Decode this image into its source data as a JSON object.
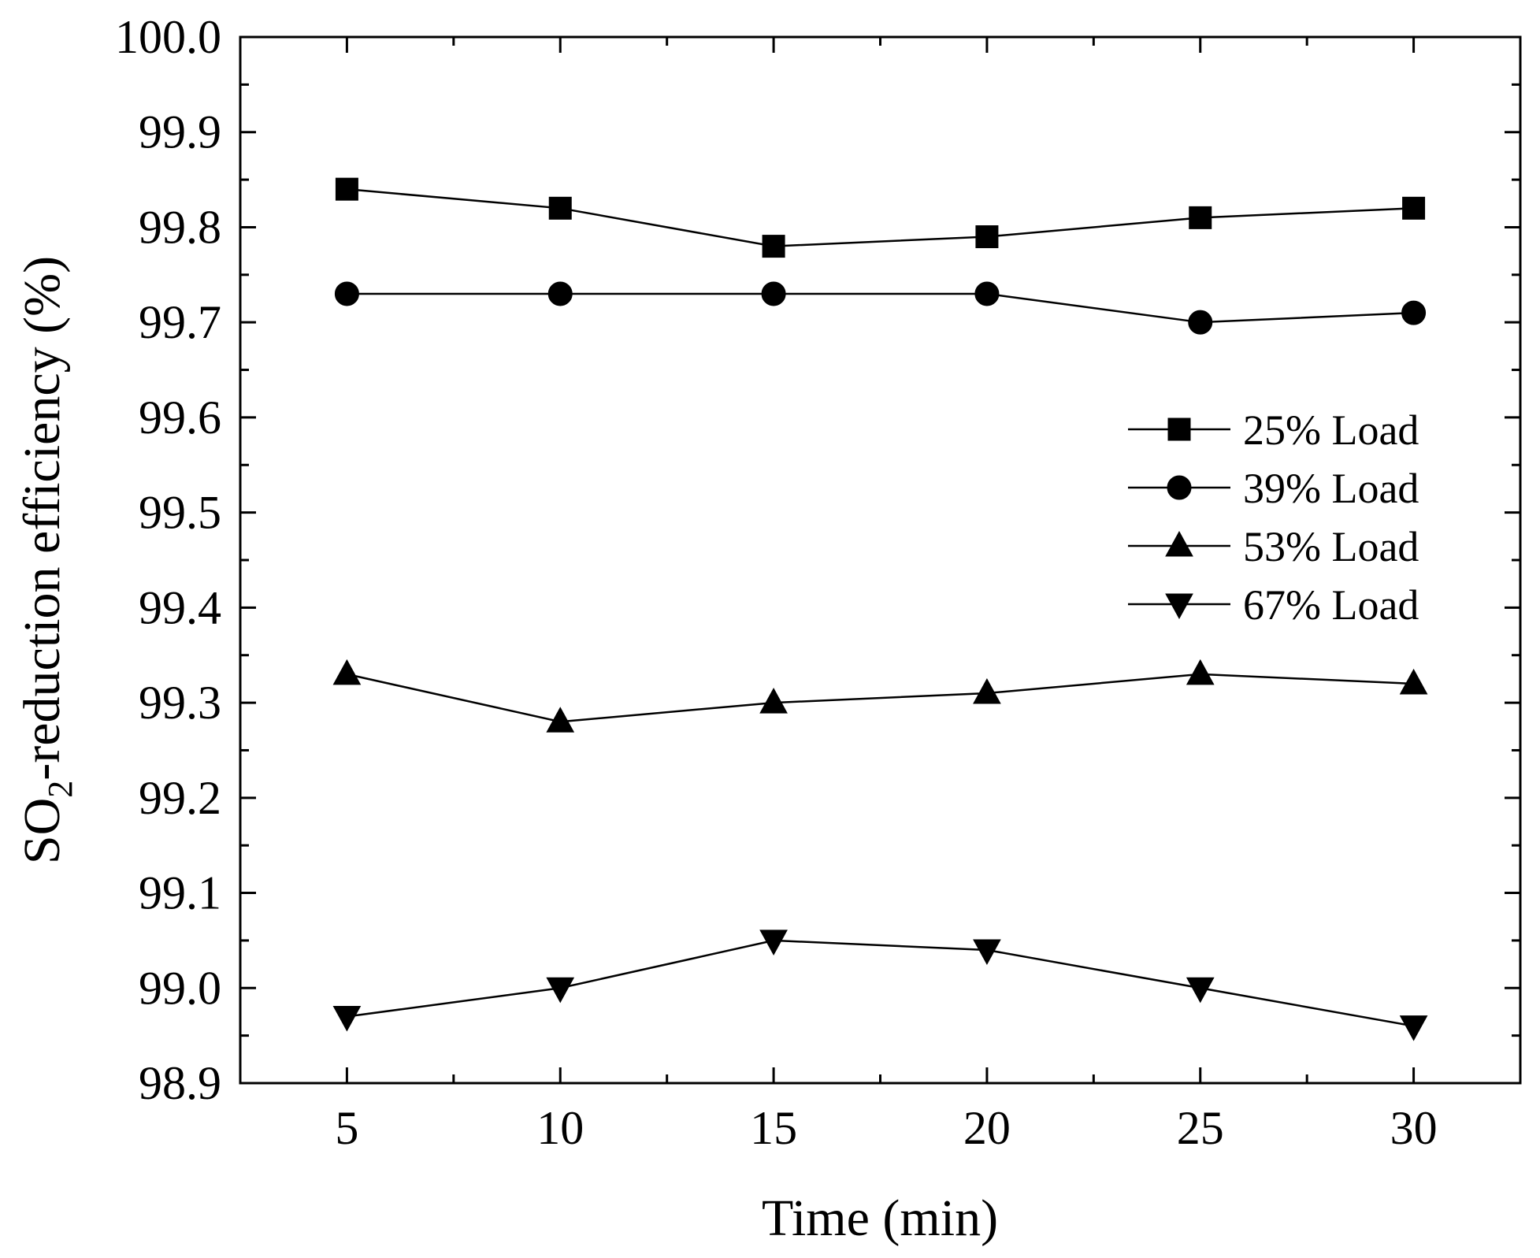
{
  "chart_data": {
    "type": "line",
    "title": "",
    "xlabel": "Time (min)",
    "ylabel": {
      "prefix": "SO",
      "subscript": "2",
      "suffix": "-reduction efficiency (%)"
    },
    "x": [
      5,
      10,
      15,
      20,
      25,
      30
    ],
    "xlim": [
      2.5,
      32.5
    ],
    "ylim": [
      98.9,
      100.0
    ],
    "xticks": [
      5,
      10,
      15,
      20,
      25,
      30
    ],
    "xtick_labels": [
      "5",
      "10",
      "15",
      "20",
      "25",
      "30"
    ],
    "yticks": [
      98.9,
      99.0,
      99.1,
      99.2,
      99.3,
      99.4,
      99.5,
      99.6,
      99.7,
      99.8,
      99.9,
      100.0
    ],
    "ytick_labels": [
      "98.9",
      "99.0",
      "99.1",
      "99.2",
      "99.3",
      "99.4",
      "99.5",
      "99.6",
      "99.7",
      "99.8",
      "99.9",
      "100.0"
    ],
    "grid": false,
    "legend_position": "right",
    "series": [
      {
        "name": "25% Load",
        "marker": "square",
        "values": [
          99.84,
          99.82,
          99.78,
          99.79,
          99.81,
          99.82
        ]
      },
      {
        "name": "39% Load",
        "marker": "circle",
        "values": [
          99.73,
          99.73,
          99.73,
          99.73,
          99.7,
          99.71
        ]
      },
      {
        "name": "53% Load",
        "marker": "triangle-up",
        "values": [
          99.33,
          99.28,
          99.3,
          99.31,
          99.33,
          99.32
        ]
      },
      {
        "name": "67% Load",
        "marker": "triangle-down",
        "values": [
          98.97,
          99.0,
          99.05,
          99.04,
          99.0,
          98.96
        ]
      }
    ],
    "colors": {
      "line": "#000000",
      "marker": "#000000",
      "background": "#ffffff"
    }
  }
}
